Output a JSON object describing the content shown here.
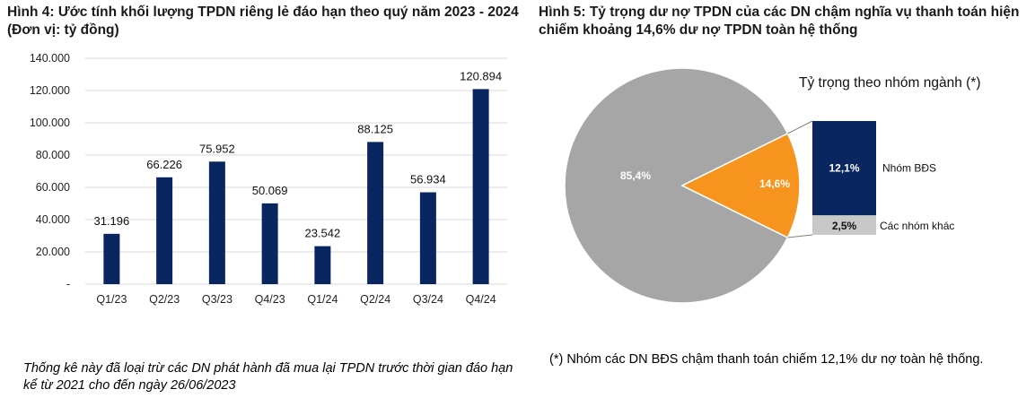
{
  "left_panel": {
    "title": "Hình 4: Ước tính khối lượng TPDN riêng lẻ đáo hạn theo quý năm 2023 - 2024 (Đơn vị: tỷ đồng)",
    "note": "Thống kê này đã loại trừ các DN phát hành đã mua lại TPDN trước thời gian đáo hạn kể từ 2021 cho đến ngày 26/06/2023"
  },
  "right_panel": {
    "title": "Hình 5: Tỷ trọng dư nợ TPDN của các DN chậm nghĩa vụ thanh toán hiện chiếm khoảng 14,6% dư nợ TPDN toàn hệ thống",
    "note": "(*) Nhóm các DN BĐS chậm thanh toán chiếm 12,1% dư nợ toàn hệ thống."
  },
  "colors": {
    "bar": "#0a2660",
    "pie_main": "#a6a6a6",
    "pie_highlight": "#f7941d",
    "sub_bds": "#0a2660",
    "sub_other": "#c8c8c8",
    "grid": "#d9d9d9"
  },
  "chart_data": [
    {
      "type": "bar",
      "categories": [
        "Q1/23",
        "Q2/23",
        "Q3/23",
        "Q4/23",
        "Q1/24",
        "Q2/24",
        "Q3/24",
        "Q4/24"
      ],
      "values": [
        31196,
        66226,
        75952,
        50069,
        23542,
        88125,
        56934,
        120894
      ],
      "value_labels": [
        "31.196",
        "66.226",
        "75.952",
        "50.069",
        "23.542",
        "88.125",
        "56.934",
        "120.894"
      ],
      "ylim": [
        0,
        140000
      ],
      "yticks": [
        0,
        20000,
        40000,
        60000,
        80000,
        100000,
        120000,
        140000
      ],
      "ytick_labels": [
        "-",
        "20.000",
        "40.000",
        "60.000",
        "80.000",
        "100.000",
        "120.000",
        "140.000"
      ],
      "grid": true
    },
    {
      "type": "pie",
      "slices": [
        {
          "value": 85.4,
          "label": "85,4%"
        },
        {
          "value": 14.6,
          "label": "14,6%"
        }
      ],
      "breakdown": {
        "title": "Tỷ trọng theo nhóm ngành (*)",
        "items": [
          {
            "value": 12.1,
            "label": "12,1%",
            "name": "Nhóm BĐS"
          },
          {
            "value": 2.5,
            "label": "2,5%",
            "name": "Các nhóm khác"
          }
        ]
      }
    }
  ]
}
